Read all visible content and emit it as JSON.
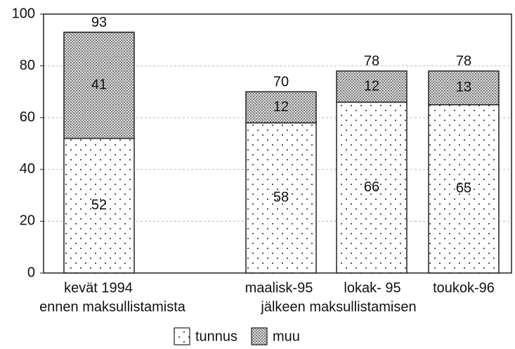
{
  "chart_data": {
    "type": "stacked_bar",
    "categories": [
      "kevät 1994",
      "maalisk-95",
      "lokak- 95",
      "toukok-96"
    ],
    "groups": [
      {
        "label": "ennen maksullistamista"
      },
      {
        "label": "jälkeen maksullistamisen"
      }
    ],
    "series": [
      {
        "name": "tunnus",
        "color": "#222222",
        "values": [
          52,
          58,
          66,
          65
        ]
      },
      {
        "name": "muu",
        "color": "#222222",
        "values": [
          41,
          12,
          12,
          13
        ]
      }
    ],
    "totals": [
      93,
      70,
      78,
      78
    ],
    "ylim": [
      0,
      100
    ],
    "yticks": [
      0,
      20,
      40,
      60,
      80,
      100
    ],
    "grid": true
  }
}
